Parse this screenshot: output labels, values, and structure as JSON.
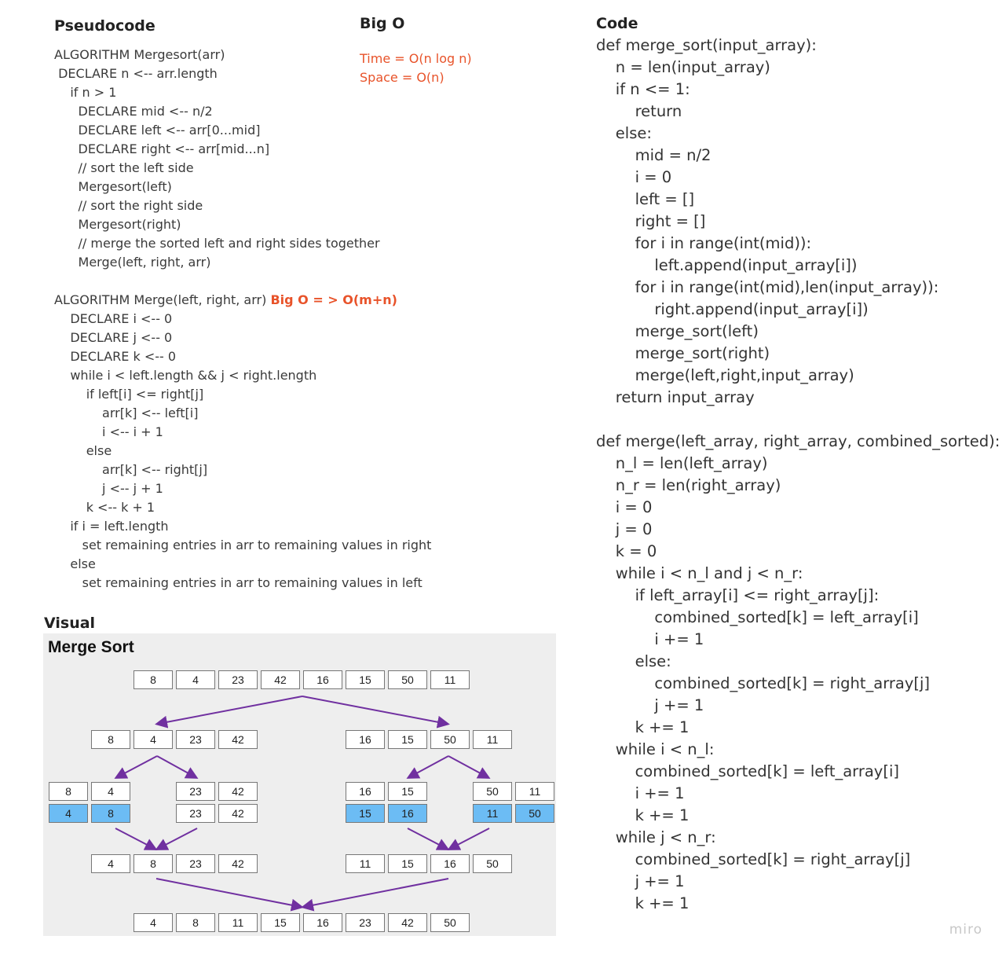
{
  "pseudocode": {
    "title": "Pseudocode",
    "lines": [
      "ALGORITHM Mergesort(arr)",
      " DECLARE n <-- arr.length",
      "    if n > 1",
      "      DECLARE mid <-- n/2",
      "      DECLARE left <-- arr[0...mid]",
      "      DECLARE right <-- arr[mid...n]",
      "      // sort the left side",
      "      Mergesort(left)",
      "      // sort the right side",
      "      Mergesort(right)",
      "      // merge the sorted left and right sides together",
      "      Merge(left, right, arr)",
      ""
    ],
    "merge_header": "ALGORITHM Merge(left, right, arr) ",
    "merge_bigo": "Big O = > O(m+n)",
    "merge_lines": [
      "    DECLARE i <-- 0",
      "    DECLARE j <-- 0",
      "    DECLARE k <-- 0",
      "    while i < left.length && j < right.length",
      "        if left[i] <= right[j]",
      "            arr[k] <-- left[i]",
      "            i <-- i + 1",
      "        else",
      "            arr[k] <-- right[j]",
      "            j <-- j + 1",
      "        k <-- k + 1",
      "    if i = left.length",
      "       set remaining entries in arr to remaining values in right",
      "    else",
      "       set remaining entries in arr to remaining values in left"
    ]
  },
  "bigo": {
    "title": "Big O",
    "time": "Time = O(n log n)",
    "space": "Space = O(n)"
  },
  "code": {
    "title": "Code",
    "lines": [
      "def merge_sort(input_array):",
      "    n = len(input_array)",
      "    if n <= 1:",
      "        return",
      "    else:",
      "        mid = n/2",
      "        i = 0",
      "        left = []",
      "        right = []",
      "        for i in range(int(mid)):",
      "            left.append(input_array[i])",
      "        for i in range(int(mid),len(input_array)):",
      "            right.append(input_array[i])",
      "        merge_sort(left)",
      "        merge_sort(right)",
      "        merge(left,right,input_array)",
      "    return input_array",
      "",
      "def merge(left_array, right_array, combined_sorted):",
      "    n_l = len(left_array)",
      "    n_r = len(right_array)",
      "    i = 0",
      "    j = 0",
      "    k = 0",
      "    while i < n_l and j < n_r:",
      "        if left_array[i] <= right_array[j]:",
      "            combined_sorted[k] = left_array[i]",
      "            i += 1",
      "        else:",
      "            combined_sorted[k] = right_array[j]",
      "            j += 1",
      "        k += 1",
      "    while i < n_l:",
      "        combined_sorted[k] = left_array[i]",
      "        i += 1",
      "        k += 1",
      "    while j < n_r:",
      "        combined_sorted[k] = right_array[j]",
      "        j += 1",
      "        k += 1"
    ]
  },
  "visual": {
    "label": "Visual",
    "title": "Merge Sort",
    "highlight_color": "#6cbcf4",
    "arrow_color": "#7030a0",
    "rows": {
      "original": [
        "8",
        "4",
        "23",
        "42",
        "16",
        "15",
        "50",
        "11"
      ],
      "split_left": [
        "8",
        "4",
        "23",
        "42"
      ],
      "split_right": [
        "16",
        "15",
        "50",
        "11"
      ],
      "pairs_top": [
        "8",
        "4",
        "23",
        "42",
        "16",
        "15",
        "50",
        "11"
      ],
      "pairs_sorted": [
        "4",
        "8",
        "23",
        "42",
        "15",
        "16",
        "11",
        "50"
      ],
      "merged_left": [
        "4",
        "8",
        "23",
        "42"
      ],
      "merged_right": [
        "11",
        "15",
        "16",
        "50"
      ],
      "final": [
        "4",
        "8",
        "11",
        "15",
        "16",
        "23",
        "42",
        "50"
      ]
    }
  },
  "watermark": "miro"
}
